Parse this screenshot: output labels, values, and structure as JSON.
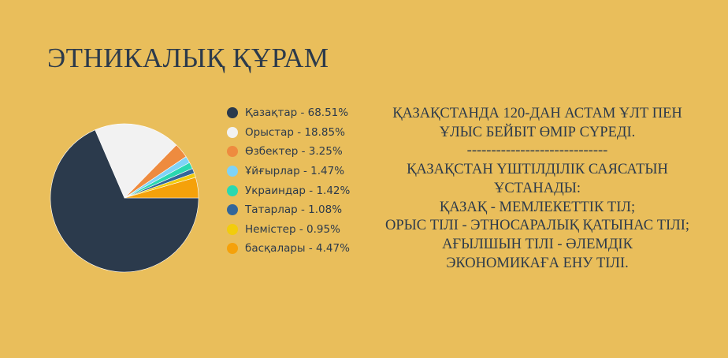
{
  "title": "ЭТНИКАЛЫҚ ҚҰРАМ",
  "chart_data": {
    "type": "pie",
    "categories": [
      "Қазақтар",
      "Орыстар",
      "Өзбектер",
      "Ұйғырлар",
      "Украиндар",
      "Татарлар",
      "Немістер",
      "басқалары"
    ],
    "values": [
      68.51,
      18.85,
      3.25,
      1.47,
      1.42,
      1.08,
      0.95,
      4.47
    ],
    "colors": [
      "#2B3A4C",
      "#F2F2F2",
      "#EE8B3F",
      "#7FD3F7",
      "#2AD8B0",
      "#336699",
      "#F2CC0C",
      "#F5A10A"
    ],
    "legend_labels": [
      "Қазақтар - 68.51%",
      "Орыстар - 18.85%",
      "Өзбектер - 3.25%",
      "Ұйғырлар - 1.47%",
      "Украиндар - 1.42%",
      "Татарлар - 1.08%",
      "Немістер - 0.95%",
      "басқалары - 4.47%"
    ],
    "legend_placement": "right",
    "start_angle": "3 o'clock, clockwise"
  },
  "info_lines": [
    "ҚАЗАҚСТАНДА 120-ДАН АСТАМ ҰЛТ ПЕН",
    "ҰЛЫС БЕЙБІТ ӨМІР СҮРЕДІ.",
    "-----------------------------",
    "ҚАЗАҚСТАН ҮШТІЛДІЛІК САЯСАТЫН",
    "ҰСТАНАДЫ:",
    "ҚАЗАҚ - МЕМЛЕКЕТТІК ТІЛ;",
    "ОРЫС ТІЛІ - ЭТНОСАРАЛЫҚ ҚАТЫНАС ТІЛІ;",
    "АҒЫЛШЫН ТІЛІ - ӘЛЕМДІК",
    "ЭКОНОМИКАҒА ЕНУ ТІЛІ."
  ]
}
